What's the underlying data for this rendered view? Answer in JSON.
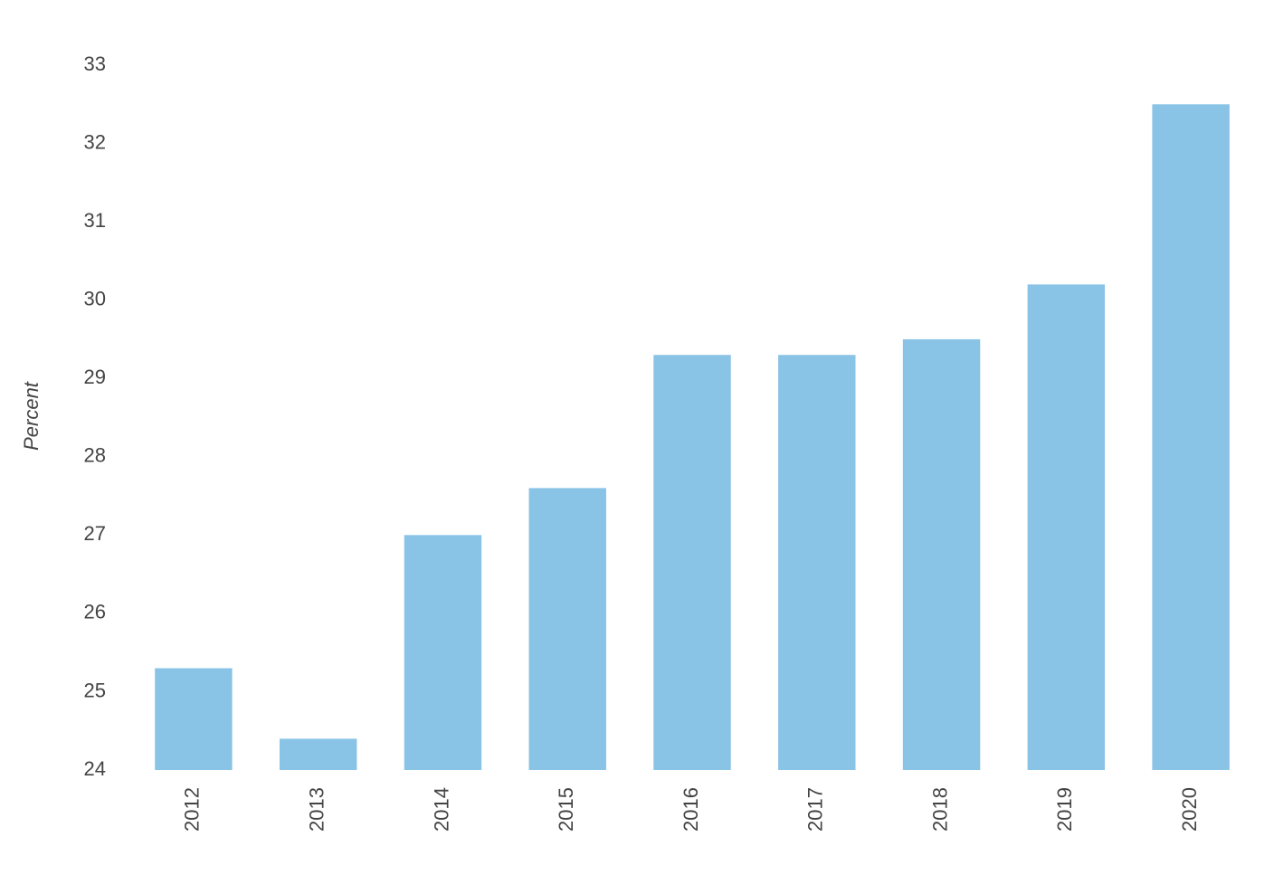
{
  "chart_data": {
    "type": "bar",
    "y_label": "Percent",
    "categories": [
      "2012",
      "2013",
      "2014",
      "2015",
      "2016",
      "2017",
      "2018",
      "2019",
      "2020"
    ],
    "values": [
      25.3,
      24.4,
      27.0,
      27.6,
      29.3,
      29.3,
      29.5,
      30.2,
      32.5
    ],
    "color": "#89c3e6",
    "ylim": [
      24,
      33
    ],
    "yticks": [
      24,
      25,
      26,
      27,
      28,
      29,
      30,
      31,
      32,
      33
    ],
    "grid": false
  }
}
